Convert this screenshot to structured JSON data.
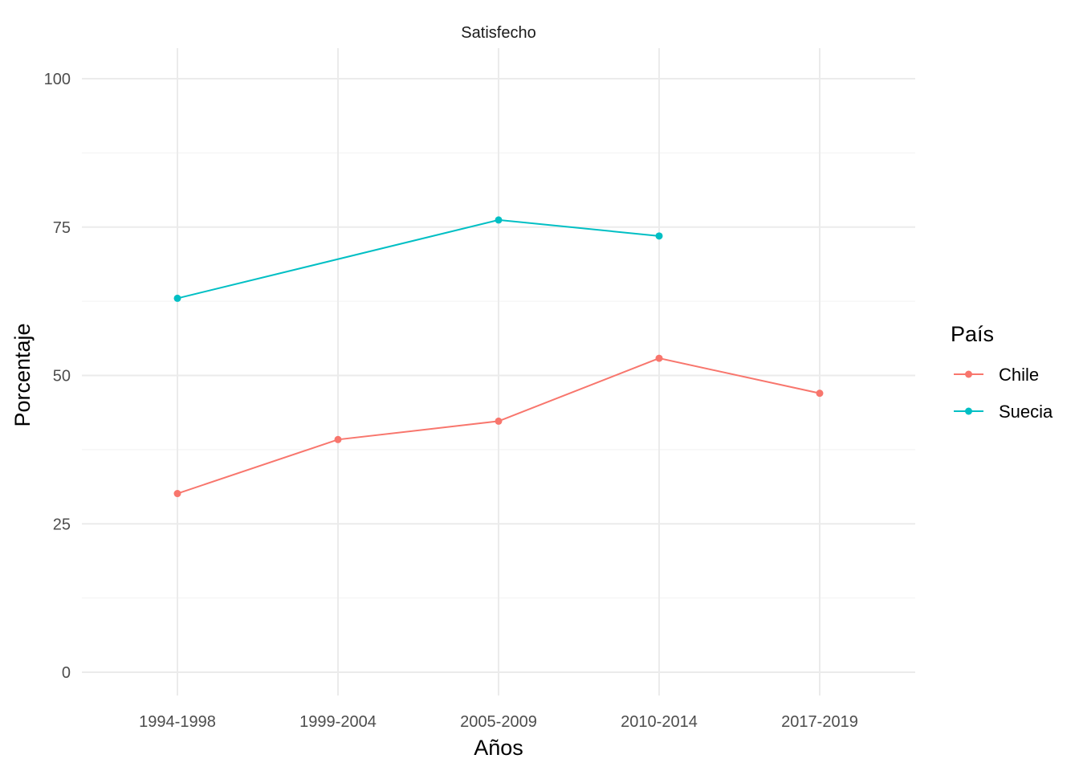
{
  "chart_data": {
    "type": "line",
    "title": "Satisfecho",
    "xlabel": "Años",
    "ylabel": "Porcentaje",
    "categories": [
      "1994-1998",
      "1999-2004",
      "2005-2009",
      "2010-2014",
      "2017-2019"
    ],
    "ylim": [
      -4,
      105
    ],
    "yticks": [
      0,
      25,
      50,
      75,
      100
    ],
    "yticks_labels": [
      "0",
      "25",
      "50",
      "75",
      "100"
    ],
    "grid": true,
    "legend": {
      "title": "País",
      "position": "right"
    },
    "series": [
      {
        "name": "Chile",
        "color": "#F8766D",
        "values": [
          30.1,
          39.2,
          42.3,
          52.9,
          47.0
        ]
      },
      {
        "name": "Suecia",
        "color": "#00BFC4",
        "values": [
          63.0,
          null,
          76.2,
          73.5,
          null
        ]
      }
    ]
  }
}
